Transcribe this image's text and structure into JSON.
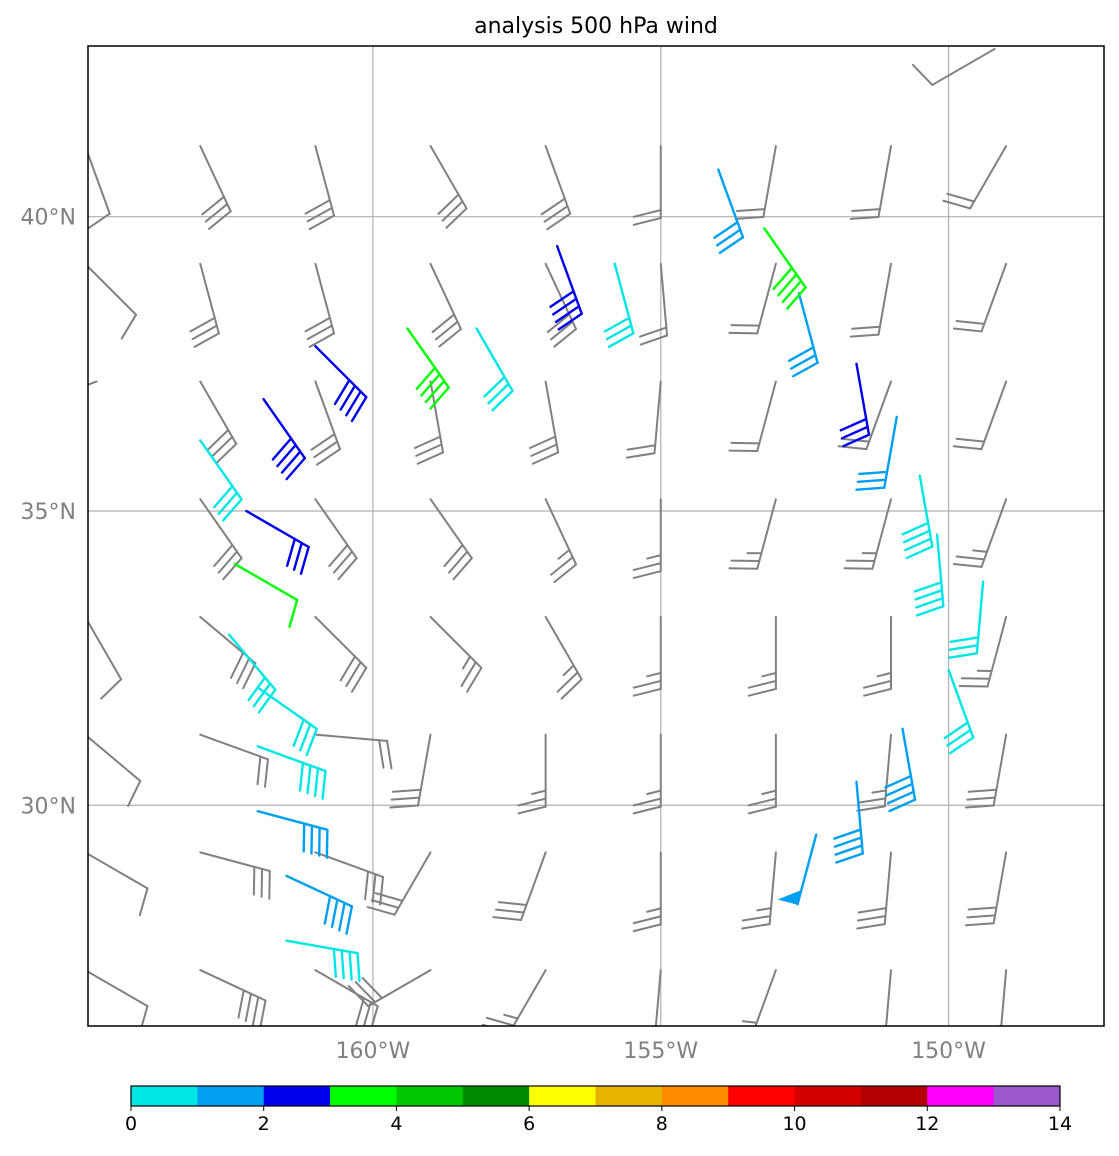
{
  "chart_data": {
    "type": "wind-barbs",
    "title": "analysis 500 hPa wind",
    "x_ticks": [
      {
        "lon": -160,
        "label": "160°W"
      },
      {
        "lon": -155,
        "label": "155°W"
      },
      {
        "lon": -150,
        "label": "150°W"
      }
    ],
    "y_ticks": [
      {
        "lat": 40,
        "label": "40°N"
      },
      {
        "lat": 35,
        "label": "35°N"
      },
      {
        "lat": 30,
        "label": "30°N"
      }
    ],
    "xlim": [
      -164.95,
      -147.3
    ],
    "ylim": [
      26.25,
      42.9
    ],
    "grid": true,
    "background_barb_color": "#808080",
    "colorbar": {
      "orientation": "horizontal",
      "range": [
        0,
        14
      ],
      "tick_values": [
        0,
        2,
        4,
        6,
        8,
        10,
        12,
        14
      ],
      "tick_labels": [
        "0",
        "2",
        "4",
        "6",
        "8",
        "10",
        "12",
        "14"
      ],
      "colors": [
        "#00e6e6",
        "#009ff0",
        "#0000ee",
        "#00ff00",
        "#00c800",
        "#008c00",
        "#ffff00",
        "#e6b400",
        "#ff8c00",
        "#ff0000",
        "#d20000",
        "#b40000",
        "#ff00ff",
        "#9b59cd"
      ]
    },
    "background_barbs": {
      "lons": [
        -163,
        -161,
        -159,
        -157,
        -155,
        -153,
        -151,
        -149
      ],
      "lats": [
        41.2,
        39.2,
        37.2,
        35.2,
        33.2,
        31.2,
        29.2,
        27.2
      ],
      "directions_deg": [
        [
          155,
          165,
          150,
          160,
          180,
          190,
          190,
          210
        ],
        [
          165,
          165,
          155,
          155,
          175,
          195,
          190,
          200
        ],
        [
          150,
          160,
          170,
          170,
          185,
          195,
          200,
          200
        ],
        [
          145,
          145,
          145,
          155,
          180,
          195,
          195,
          200
        ],
        [
          130,
          135,
          135,
          150,
          180,
          180,
          180,
          195
        ],
        [
          110,
          95,
          190,
          180,
          180,
          180,
          185,
          190
        ],
        [
          105,
          110,
          210,
          200,
          180,
          185,
          185,
          190
        ],
        [
          115,
          120,
          240,
          210,
          185,
          200,
          185,
          185
        ]
      ],
      "speeds": [
        [
          3,
          3,
          3,
          3,
          2,
          2,
          2,
          2
        ],
        [
          3,
          3,
          3,
          3,
          2,
          2,
          2,
          2
        ],
        [
          3,
          3,
          3,
          3,
          2,
          2,
          2,
          2
        ],
        [
          3,
          3,
          3,
          2.5,
          2.5,
          2.5,
          2.5,
          2.5
        ],
        [
          3,
          3,
          2.5,
          2.5,
          2.5,
          2.5,
          2.5,
          2.5
        ],
        [
          2,
          2,
          3,
          2.5,
          2.5,
          2.5,
          2.5,
          3
        ],
        [
          3,
          3,
          3,
          3,
          2.5,
          2.5,
          3,
          3
        ],
        [
          4,
          3,
          3,
          2.5,
          2.5,
          2.5,
          3,
          3
        ]
      ]
    },
    "edge_barbs": [
      {
        "lon": -165.0,
        "lat": 41.2,
        "dir_deg": 160,
        "speed": 1
      },
      {
        "lon": -165.0,
        "lat": 39.2,
        "dir_deg": 135,
        "speed": 1
      },
      {
        "lon": -164.8,
        "lat": 37.2,
        "dir_deg": 250,
        "speed": 1
      },
      {
        "lon": -165.0,
        "lat": 33.2,
        "dir_deg": 150,
        "speed": 1
      },
      {
        "lon": -165.0,
        "lat": 31.2,
        "dir_deg": 130,
        "speed": 1
      },
      {
        "lon": -165.0,
        "lat": 29.2,
        "dir_deg": 120,
        "speed": 1
      },
      {
        "lon": -165.0,
        "lat": 27.2,
        "dir_deg": 120,
        "speed": 1
      },
      {
        "lon": -149.2,
        "lat": 42.85,
        "dir_deg": 240,
        "speed": 1
      }
    ],
    "colored_barbs": [
      {
        "lon": -158.2,
        "lat": 38.1,
        "dir_deg": 150,
        "speed": 3,
        "color": "#00e6e6"
      },
      {
        "lon": -155.8,
        "lat": 39.2,
        "dir_deg": 165,
        "speed": 3,
        "color": "#00e6e6"
      },
      {
        "lon": -163.0,
        "lat": 36.2,
        "dir_deg": 145,
        "speed": 3,
        "color": "#00e6e6"
      },
      {
        "lon": -152.6,
        "lat": 38.7,
        "dir_deg": 165,
        "speed": 3,
        "color": "#009ff0"
      },
      {
        "lon": -154.0,
        "lat": 40.8,
        "dir_deg": 160,
        "speed": 3,
        "color": "#009ff0"
      },
      {
        "lon": -156.8,
        "lat": 39.5,
        "dir_deg": 160,
        "speed": 4,
        "color": "#0000ee"
      },
      {
        "lon": -159.4,
        "lat": 38.1,
        "dir_deg": 145,
        "speed": 4,
        "color": "#00ff00"
      },
      {
        "lon": -153.2,
        "lat": 39.8,
        "dir_deg": 145,
        "speed": 4,
        "color": "#00ff00"
      },
      {
        "lon": -161.0,
        "lat": 37.8,
        "dir_deg": 135,
        "speed": 4,
        "color": "#0000ee"
      },
      {
        "lon": -161.9,
        "lat": 36.9,
        "dir_deg": 145,
        "speed": 4,
        "color": "#0000ee"
      },
      {
        "lon": -151.6,
        "lat": 37.5,
        "dir_deg": 170,
        "speed": 3,
        "color": "#0000ee"
      },
      {
        "lon": -150.9,
        "lat": 36.6,
        "dir_deg": 190,
        "speed": 3,
        "color": "#009ff0"
      },
      {
        "lon": -150.5,
        "lat": 35.6,
        "dir_deg": 170,
        "speed": 4,
        "color": "#00e6e6"
      },
      {
        "lon": -150.2,
        "lat": 34.6,
        "dir_deg": 175,
        "speed": 4,
        "color": "#00e6e6"
      },
      {
        "lon": -149.4,
        "lat": 33.8,
        "dir_deg": 185,
        "speed": 3,
        "color": "#00e6e6"
      },
      {
        "lon": -162.2,
        "lat": 35.0,
        "dir_deg": 120,
        "speed": 3,
        "color": "#0000ee"
      },
      {
        "lon": -162.4,
        "lat": 34.1,
        "dir_deg": 120,
        "speed": 1,
        "color": "#00ff00"
      },
      {
        "lon": -162.5,
        "lat": 32.9,
        "dir_deg": 140,
        "speed": 3,
        "color": "#00e6e6"
      },
      {
        "lon": -162.0,
        "lat": 32.0,
        "dir_deg": 125,
        "speed": 3,
        "color": "#00e6e6"
      },
      {
        "lon": -162.0,
        "lat": 31.0,
        "dir_deg": 110,
        "speed": 4,
        "color": "#00e6e6"
      },
      {
        "lon": -162.0,
        "lat": 29.9,
        "dir_deg": 105,
        "speed": 4,
        "color": "#009ff0"
      },
      {
        "lon": -161.5,
        "lat": 28.8,
        "dir_deg": 115,
        "speed": 4,
        "color": "#009ff0"
      },
      {
        "lon": -161.5,
        "lat": 27.7,
        "dir_deg": 100,
        "speed": 4,
        "color": "#00e6e6"
      },
      {
        "lon": -150.0,
        "lat": 32.3,
        "dir_deg": 160,
        "speed": 3,
        "color": "#00e6e6"
      },
      {
        "lon": -150.8,
        "lat": 31.3,
        "dir_deg": 170,
        "speed": 4,
        "color": "#009ff0"
      },
      {
        "lon": -151.6,
        "lat": 30.4,
        "dir_deg": 175,
        "speed": 4,
        "color": "#009ff0"
      },
      {
        "lon": -152.3,
        "lat": 29.5,
        "dir_deg": 195,
        "speed": 10,
        "color": "#009ff0"
      }
    ]
  }
}
